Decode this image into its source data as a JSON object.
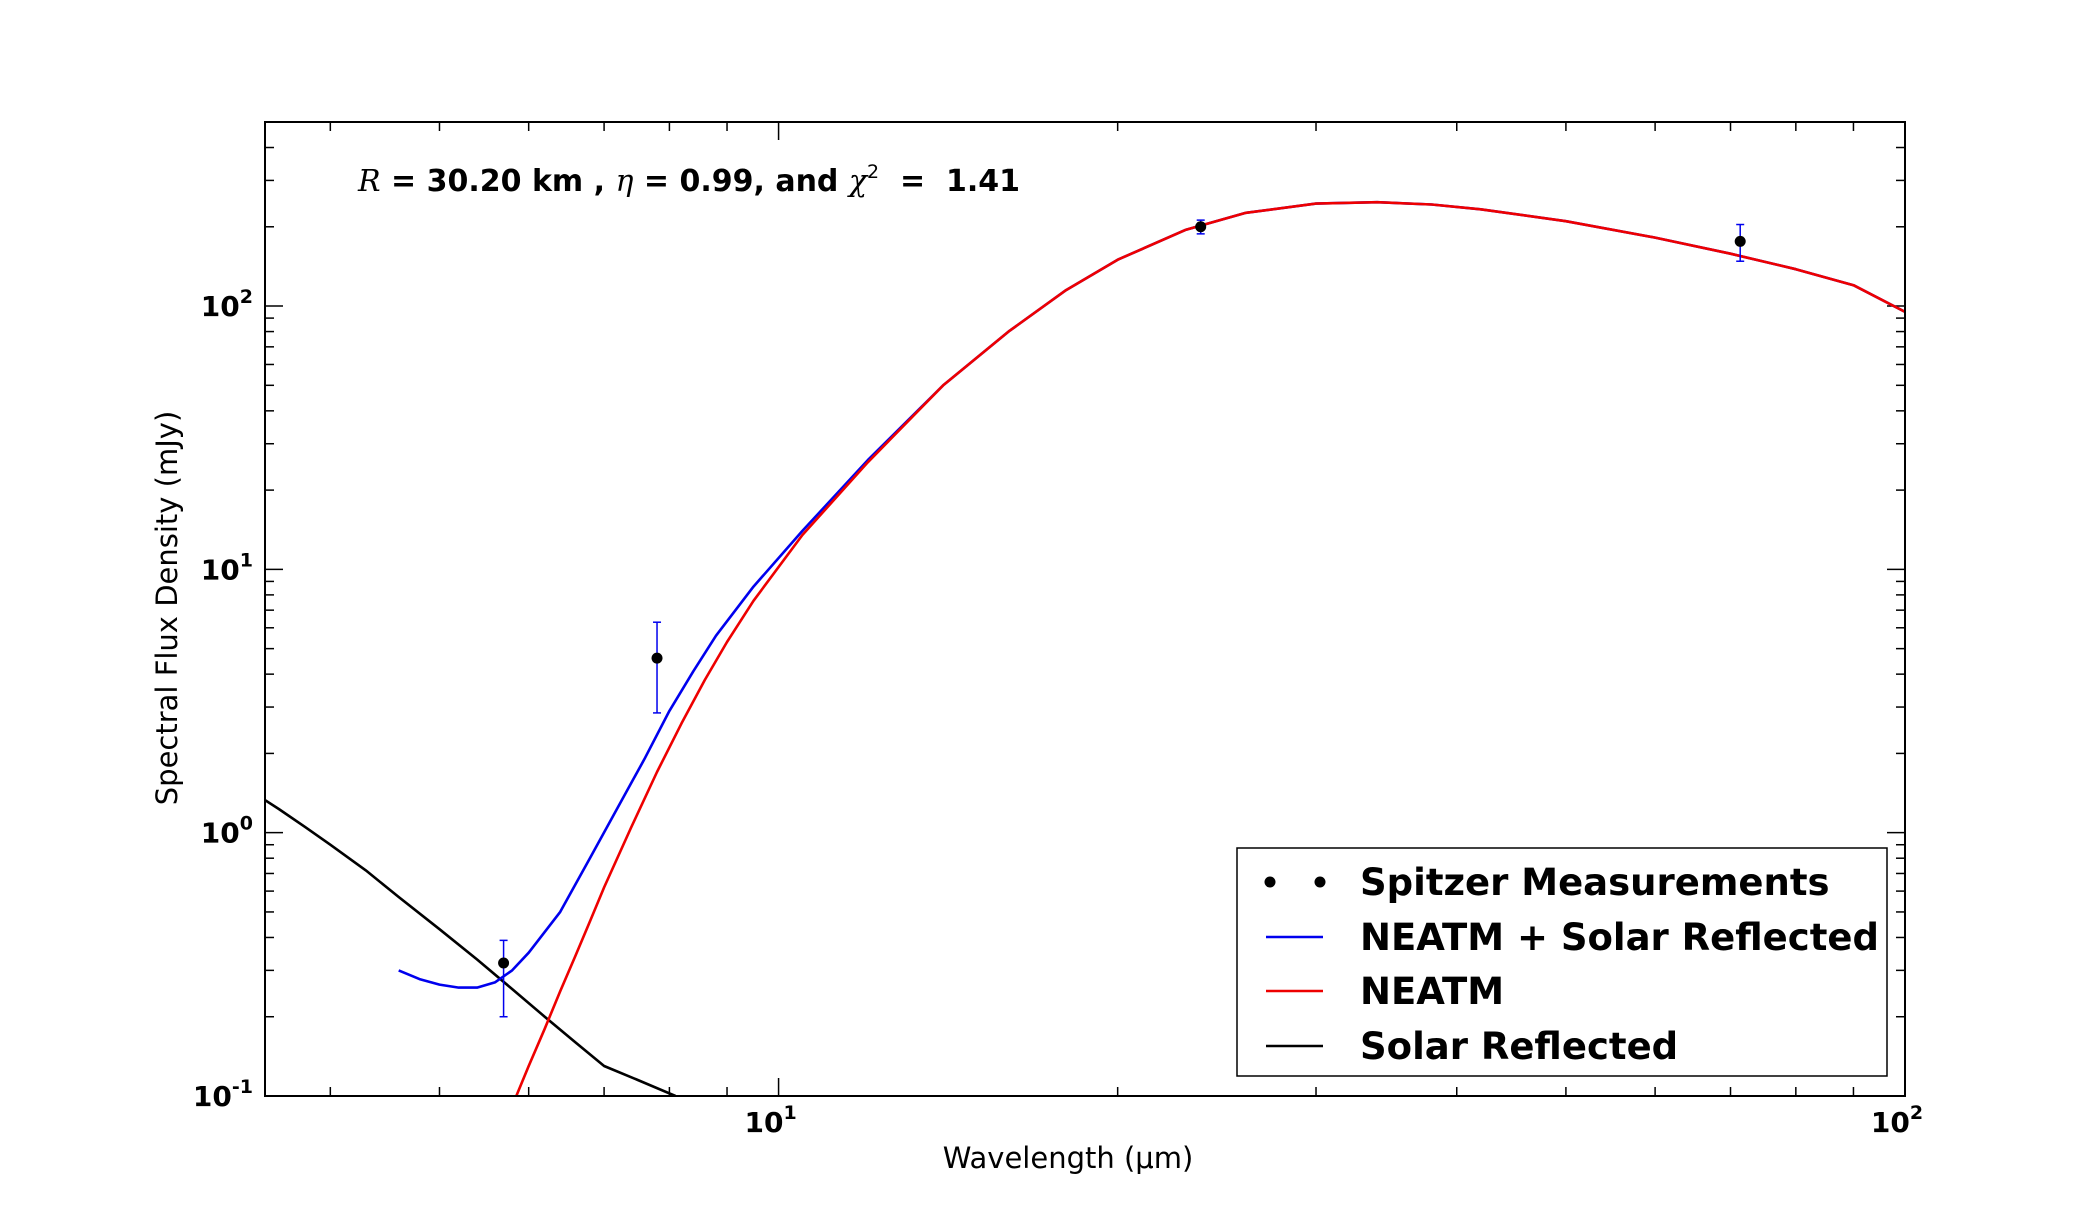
{
  "chart_data": {
    "type": "line",
    "xlabel": "Wavelength (μm)",
    "ylabel": "Spectral Flux Density (mJy)",
    "x_scale": "log",
    "y_scale": "log",
    "xlim": [
      3.5,
      100
    ],
    "ylim": [
      0.1,
      500
    ],
    "x_ticks": [
      {
        "value": 10,
        "base": "10",
        "exp": "1"
      },
      {
        "value": 100,
        "base": "10",
        "exp": "2"
      }
    ],
    "y_ticks": [
      {
        "value": 0.1,
        "base": "10",
        "exp": "-1"
      },
      {
        "value": 1,
        "base": "10",
        "exp": "0"
      },
      {
        "value": 10,
        "base": "10",
        "exp": "1"
      },
      {
        "value": 100,
        "base": "10",
        "exp": "2"
      }
    ],
    "annotation": {
      "r_sym": "R",
      "r_text": " = 30.20 km , ",
      "eta_sym": "η",
      "eta_text": " = 0.99, and ",
      "chi_sym": "χ",
      "chi_exp": "2",
      "chi_text": "  =  1.41"
    },
    "legend": [
      {
        "label": "Spitzer Measurements",
        "kind": "points",
        "color": "#000000"
      },
      {
        "label": "NEATM + Solar Reflected",
        "kind": "line",
        "color": "#0000ee"
      },
      {
        "label": "NEATM",
        "kind": "line",
        "color": "#ee0000"
      },
      {
        "label": "Solar Reflected",
        "kind": "line",
        "color": "#000000"
      }
    ],
    "legend_position": "bottom-right",
    "points": [
      {
        "x": 5.7,
        "y": 0.32,
        "ylow": 0.2,
        "yhigh": 0.39
      },
      {
        "x": 7.8,
        "y": 4.6,
        "ylow": 2.85,
        "yhigh": 6.3
      },
      {
        "x": 23.7,
        "y": 200,
        "ylow": 188,
        "yhigh": 212
      },
      {
        "x": 71.4,
        "y": 176,
        "ylow": 148,
        "yhigh": 204
      }
    ],
    "series": [
      {
        "name": "NEATM + Solar Reflected",
        "color": "#0000ee",
        "x": [
          4.6,
          4.8,
          5.0,
          5.2,
          5.4,
          5.6,
          5.8,
          6.0,
          6.4,
          6.8,
          7.2,
          7.6,
          8.0,
          8.4,
          8.8,
          9.5,
          10.5,
          12,
          14,
          16,
          18,
          20,
          23,
          26,
          30,
          34,
          38,
          42,
          50,
          60,
          70,
          80,
          90,
          100
        ],
        "y": [
          0.3,
          0.278,
          0.265,
          0.258,
          0.258,
          0.27,
          0.3,
          0.35,
          0.5,
          0.8,
          1.25,
          1.9,
          2.9,
          4.1,
          5.6,
          8.6,
          14,
          26,
          50,
          80,
          115,
          150,
          195,
          226,
          245,
          248,
          243,
          233,
          210,
          182,
          158,
          138,
          120,
          95
        ]
      },
      {
        "name": "NEATM",
        "color": "#ee0000",
        "x": [
          5.85,
          6.0,
          6.2,
          6.4,
          6.6,
          6.8,
          7.0,
          7.4,
          7.8,
          8.2,
          8.6,
          9.0,
          9.5,
          10.5,
          12,
          14,
          16,
          18,
          20,
          23,
          26,
          30,
          34,
          38,
          42,
          50,
          60,
          70,
          80,
          90,
          100
        ],
        "y": [
          0.1,
          0.13,
          0.18,
          0.25,
          0.34,
          0.46,
          0.62,
          1.05,
          1.7,
          2.6,
          3.8,
          5.3,
          7.6,
          13.5,
          25.5,
          50,
          80,
          115,
          150,
          195,
          226,
          245,
          248,
          243,
          233,
          210,
          182,
          158,
          138,
          120,
          95
        ]
      },
      {
        "name": "Solar Reflected",
        "color": "#000000",
        "x": [
          3.5,
          3.6,
          3.8,
          4.0,
          4.3,
          4.6,
          5.0,
          5.4,
          5.8,
          6.2,
          6.6,
          7.0,
          7.5,
          8.1
        ],
        "y": [
          1.33,
          1.23,
          1.05,
          0.9,
          0.72,
          0.57,
          0.43,
          0.33,
          0.255,
          0.2,
          0.16,
          0.13,
          0.115,
          0.1
        ]
      }
    ]
  }
}
